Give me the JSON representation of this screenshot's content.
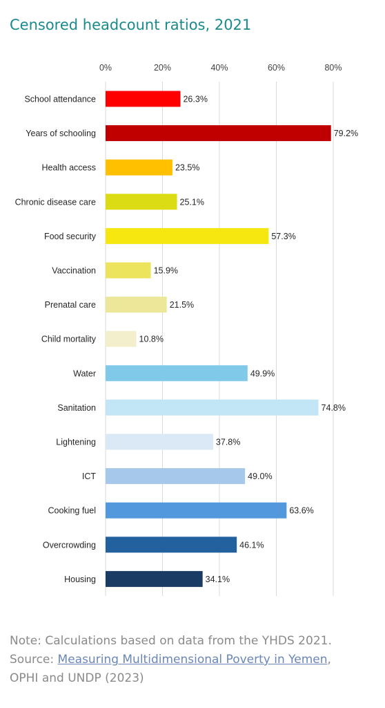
{
  "chart_data": {
    "type": "bar",
    "orientation": "horizontal",
    "title": "Censored headcount ratios, 2021",
    "xlim": [
      0,
      80
    ],
    "xticks": [
      0,
      20,
      40,
      60,
      80
    ],
    "xtick_labels": [
      "0%",
      "20%",
      "40%",
      "60%",
      "80%"
    ],
    "grid": true,
    "categories": [
      "School attendance",
      "Years of schooling",
      "Health access",
      "Chronic disease care",
      "Food security",
      "Vaccination",
      "Prenatal care",
      "Child mortality",
      "Water",
      "Sanitation",
      "Lightening",
      "ICT",
      "Cooking fuel",
      "Overcrowding",
      "Housing"
    ],
    "values": [
      26.3,
      79.2,
      23.5,
      25.1,
      57.3,
      15.9,
      21.5,
      10.8,
      49.9,
      74.8,
      37.8,
      49.0,
      63.6,
      46.1,
      34.1
    ],
    "value_labels": [
      "26.3%",
      "79.2%",
      "23.5%",
      "25.1%",
      "57.3%",
      "15.9%",
      "21.5%",
      "10.8%",
      "49.9%",
      "74.8%",
      "37.8%",
      "49.0%",
      "63.6%",
      "46.1%",
      "34.1%"
    ],
    "colors": [
      "#ff0000",
      "#c00000",
      "#ffc000",
      "#dcdc14",
      "#f5e70f",
      "#ece45c",
      "#ece799",
      "#f3efcc",
      "#81c9e8",
      "#c2e6f6",
      "#dbe8f6",
      "#a6c8eb",
      "#5298dc",
      "#22619e",
      "#1a3c64"
    ]
  },
  "note": {
    "line1": "Note: Calculations based on data from the YHDS 2021.",
    "source_prefix": "Source: ",
    "source_link": "Measuring Multidimensional Poverty in Yemen",
    "source_suffix": ",",
    "line3": "OPHI and UNDP (2023)"
  }
}
